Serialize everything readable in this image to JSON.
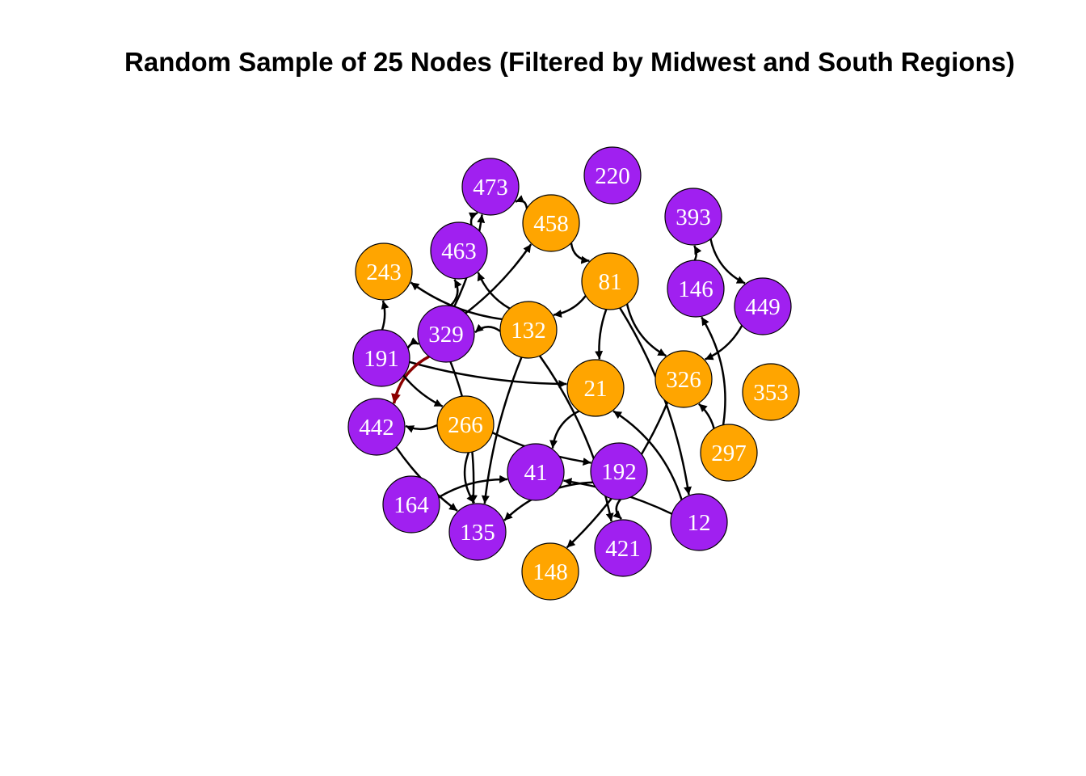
{
  "title": "Random Sample of 25 Nodes (Filtered by Midwest and South Regions)",
  "colors": {
    "purple": "#a020f0",
    "orange": "#ffa500",
    "edge": "#000000",
    "highlight": "#8b0000"
  },
  "nodes": [
    {
      "id": "473",
      "color": "purple"
    },
    {
      "id": "220",
      "color": "purple"
    },
    {
      "id": "458",
      "color": "orange"
    },
    {
      "id": "393",
      "color": "purple"
    },
    {
      "id": "463",
      "color": "purple"
    },
    {
      "id": "243",
      "color": "orange"
    },
    {
      "id": "81",
      "color": "orange"
    },
    {
      "id": "146",
      "color": "purple"
    },
    {
      "id": "449",
      "color": "purple"
    },
    {
      "id": "329",
      "color": "purple"
    },
    {
      "id": "132",
      "color": "orange"
    },
    {
      "id": "191",
      "color": "purple"
    },
    {
      "id": "21",
      "color": "orange"
    },
    {
      "id": "326",
      "color": "orange"
    },
    {
      "id": "353",
      "color": "orange"
    },
    {
      "id": "442",
      "color": "purple"
    },
    {
      "id": "266",
      "color": "orange"
    },
    {
      "id": "297",
      "color": "orange"
    },
    {
      "id": "41",
      "color": "purple"
    },
    {
      "id": "192",
      "color": "purple"
    },
    {
      "id": "164",
      "color": "purple"
    },
    {
      "id": "135",
      "color": "purple"
    },
    {
      "id": "12",
      "color": "purple"
    },
    {
      "id": "421",
      "color": "purple"
    },
    {
      "id": "148",
      "color": "orange"
    }
  ],
  "edges": [
    {
      "from": "458",
      "to": "473"
    },
    {
      "from": "463",
      "to": "473"
    },
    {
      "from": "329",
      "to": "473"
    },
    {
      "from": "329",
      "to": "463"
    },
    {
      "from": "132",
      "to": "463"
    },
    {
      "from": "329",
      "to": "458"
    },
    {
      "from": "458",
      "to": "81"
    },
    {
      "from": "81",
      "to": "132"
    },
    {
      "from": "81",
      "to": "21"
    },
    {
      "from": "81",
      "to": "326"
    },
    {
      "from": "132",
      "to": "243"
    },
    {
      "from": "191",
      "to": "243"
    },
    {
      "from": "132",
      "to": "329"
    },
    {
      "from": "191",
      "to": "329"
    },
    {
      "from": "191",
      "to": "21"
    },
    {
      "from": "329",
      "to": "442",
      "highlight": true
    },
    {
      "from": "266",
      "to": "442"
    },
    {
      "from": "191",
      "to": "266"
    },
    {
      "from": "266",
      "to": "135"
    },
    {
      "from": "329",
      "to": "135"
    },
    {
      "from": "132",
      "to": "135"
    },
    {
      "from": "21",
      "to": "41"
    },
    {
      "from": "132",
      "to": "421"
    },
    {
      "from": "266",
      "to": "192"
    },
    {
      "from": "192",
      "to": "135"
    },
    {
      "from": "326",
      "to": "148"
    },
    {
      "from": "12",
      "to": "41"
    },
    {
      "from": "12",
      "to": "21"
    },
    {
      "from": "81",
      "to": "12"
    },
    {
      "from": "146",
      "to": "393"
    },
    {
      "from": "393",
      "to": "449"
    },
    {
      "from": "449",
      "to": "326"
    },
    {
      "from": "297",
      "to": "326"
    },
    {
      "from": "297",
      "to": "146"
    },
    {
      "from": "164",
      "to": "41"
    },
    {
      "from": "442",
      "to": "135"
    },
    {
      "from": "192",
      "to": "421"
    }
  ]
}
